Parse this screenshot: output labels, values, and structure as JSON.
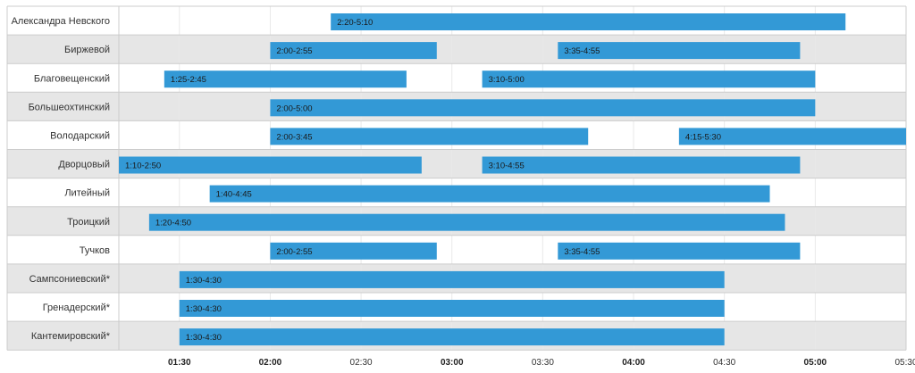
{
  "chart_data": {
    "type": "gantt",
    "title": "",
    "xlabel": "",
    "ylabel": "",
    "x_range": [
      "01:10",
      "05:30"
    ],
    "x_ticks": [
      "01:30",
      "02:00",
      "02:30",
      "03:00",
      "03:30",
      "04:00",
      "04:30",
      "05:00",
      "05:30"
    ],
    "bold_ticks": [
      "01:30",
      "02:00",
      "03:00",
      "04:00",
      "05:00"
    ],
    "grid": true,
    "colors": {
      "bar": "#3399d6",
      "row_alt": "#e6e6e6",
      "row": "#ffffff",
      "grid": "#e9e9e9",
      "border": "#cccccc"
    },
    "rows": [
      {
        "name": "Александра Невского",
        "intervals": [
          {
            "start": "2:20",
            "end": "5:10",
            "label": "2:20-5:10"
          }
        ]
      },
      {
        "name": "Биржевой",
        "intervals": [
          {
            "start": "2:00",
            "end": "2:55",
            "label": "2:00-2:55"
          },
          {
            "start": "3:35",
            "end": "4:55",
            "label": "3:35-4:55"
          }
        ]
      },
      {
        "name": "Благовещенский",
        "intervals": [
          {
            "start": "1:25",
            "end": "2:45",
            "label": "1:25-2:45"
          },
          {
            "start": "3:10",
            "end": "5:00",
            "label": "3:10-5:00"
          }
        ]
      },
      {
        "name": "Большеохтинский",
        "intervals": [
          {
            "start": "2:00",
            "end": "5:00",
            "label": "2:00-5:00"
          }
        ]
      },
      {
        "name": "Володарский",
        "intervals": [
          {
            "start": "2:00",
            "end": "3:45",
            "label": "2:00-3:45"
          },
          {
            "start": "4:15",
            "end": "5:30",
            "label": "4:15-5:30"
          }
        ]
      },
      {
        "name": "Дворцовый",
        "intervals": [
          {
            "start": "1:10",
            "end": "2:50",
            "label": "1:10-2:50"
          },
          {
            "start": "3:10",
            "end": "4:55",
            "label": "3:10-4:55"
          }
        ]
      },
      {
        "name": "Литейный",
        "intervals": [
          {
            "start": "1:40",
            "end": "4:45",
            "label": "1:40-4:45"
          }
        ]
      },
      {
        "name": "Троицкий",
        "intervals": [
          {
            "start": "1:20",
            "end": "4:50",
            "label": "1:20-4:50"
          }
        ]
      },
      {
        "name": "Тучков",
        "intervals": [
          {
            "start": "2:00",
            "end": "2:55",
            "label": "2:00-2:55"
          },
          {
            "start": "3:35",
            "end": "4:55",
            "label": "3:35-4:55"
          }
        ]
      },
      {
        "name": "Сампсониевский*",
        "intervals": [
          {
            "start": "1:30",
            "end": "4:30",
            "label": "1:30-4:30"
          }
        ]
      },
      {
        "name": "Гренадерский*",
        "intervals": [
          {
            "start": "1:30",
            "end": "4:30",
            "label": "1:30-4:30"
          }
        ]
      },
      {
        "name": "Кантемировский*",
        "intervals": [
          {
            "start": "1:30",
            "end": "4:30",
            "label": "1:30-4:30"
          }
        ]
      }
    ]
  }
}
